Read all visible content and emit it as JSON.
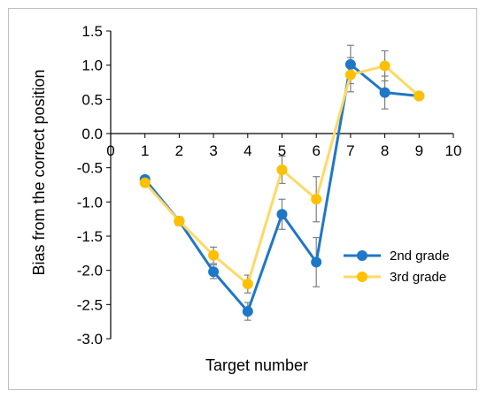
{
  "chart_data": {
    "type": "line",
    "title": "",
    "xlabel": "Target number",
    "ylabel": "Bias from the correct position",
    "xlim": [
      0,
      10
    ],
    "ylim": [
      -3.0,
      1.5
    ],
    "x_ticks": [
      0,
      1,
      2,
      3,
      4,
      5,
      6,
      7,
      8,
      9,
      10
    ],
    "y_ticks": [
      -3.0,
      -2.5,
      -2.0,
      -1.5,
      -1.0,
      -0.5,
      0.0,
      0.5,
      1.0,
      1.5
    ],
    "x_tick_labels": [
      "0",
      "1",
      "2",
      "3",
      "4",
      "5",
      "6",
      "7",
      "8",
      "9",
      "10"
    ],
    "y_tick_labels": [
      "-3.0",
      "-2.5",
      "-2.0",
      "-1.5",
      "-1.0",
      "-0.5",
      "0.0",
      "0.5",
      "1.0",
      "1.5"
    ],
    "grid": false,
    "legend_position": "right",
    "series": [
      {
        "name": "2nd grade",
        "color": "#1f77c8",
        "x": [
          1,
          2,
          3,
          4,
          5,
          6,
          7,
          8,
          9
        ],
        "values": [
          -0.67,
          -1.28,
          -2.02,
          -2.6,
          -1.18,
          -1.88,
          1.01,
          0.6,
          0.55
        ],
        "error": [
          0.05,
          0.06,
          0.1,
          0.13,
          0.22,
          0.36,
          0.28,
          0.24,
          0.05
        ]
      },
      {
        "name": "3rd grade",
        "color": "#ffd966",
        "marker_color": "#ffc000",
        "x": [
          1,
          2,
          3,
          4,
          5,
          6,
          7,
          8,
          9
        ],
        "values": [
          -0.72,
          -1.28,
          -1.78,
          -2.2,
          -0.53,
          -0.96,
          0.86,
          0.99,
          0.55
        ],
        "error": [
          0.05,
          0.06,
          0.12,
          0.13,
          0.2,
          0.33,
          0.25,
          0.22,
          0.05
        ]
      }
    ]
  }
}
